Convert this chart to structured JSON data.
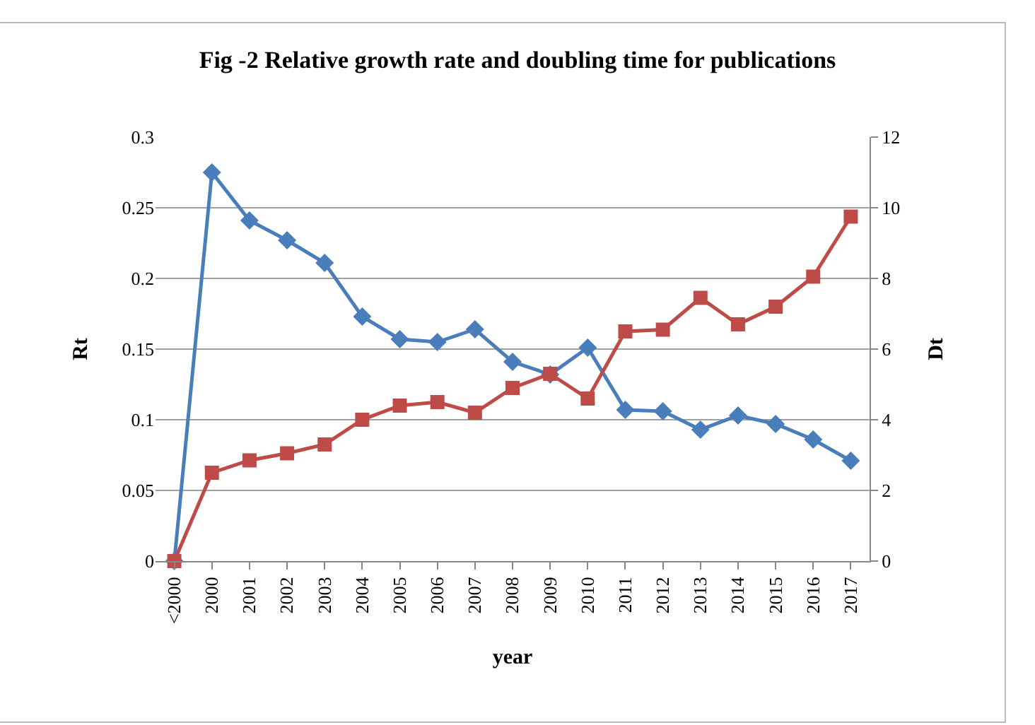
{
  "chart_data": {
    "type": "line",
    "title": "Fig -2 Relative growth rate and doubling time for publications",
    "xlabel": "year",
    "ylabel": "Rt",
    "y2label": "Dt",
    "categories": [
      "<2000",
      "2000",
      "2001",
      "2002",
      "2003",
      "2004",
      "2005",
      "2006",
      "2007",
      "2008",
      "2009",
      "2010",
      "2011",
      "2012",
      "2013",
      "2014",
      "2015",
      "2016",
      "2017"
    ],
    "series": [
      {
        "color": "#4a7ebb",
        "marker": "diamond",
        "values": [
          0,
          0.275,
          0.241,
          0.227,
          0.211,
          0.173,
          0.157,
          0.155,
          0.164,
          0.141,
          0.132,
          0.151,
          0.107,
          0.106,
          0.093,
          0.103,
          0.097,
          0.086,
          0.071
        ]
      },
      {
        "color": "#be4b48",
        "marker": "square",
        "axis": "y2",
        "values": [
          0,
          2.5,
          2.85,
          3.05,
          3.3,
          4.0,
          4.4,
          4.5,
          4.2,
          4.9,
          5.3,
          4.6,
          6.5,
          6.55,
          7.45,
          6.7,
          7.2,
          8.05,
          9.75
        ]
      }
    ],
    "ylim": [
      0,
      0.3
    ],
    "yticks": [
      0,
      0.05,
      0.1,
      0.15,
      0.2,
      0.25,
      0.3
    ],
    "y2lim": [
      0,
      12
    ],
    "y2ticks": [
      0,
      2,
      4,
      6,
      8,
      10,
      12
    ],
    "grid": "y"
  }
}
